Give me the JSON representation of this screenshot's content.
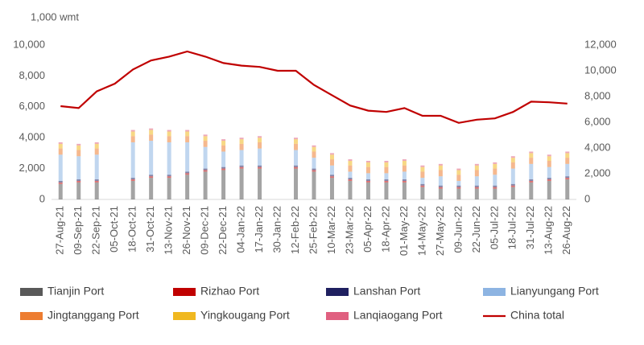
{
  "chart_data": {
    "type": "stacked_bar_line",
    "y_axis_title": "1,000 wmt",
    "categories": [
      "27-Aug-21",
      "09-Sep-21",
      "22-Sep-21",
      "05-Oct-21",
      "18-Oct-21",
      "31-Oct-21",
      "13-Nov-21",
      "26-Nov-21",
      "09-Dec-21",
      "22-Dec-21",
      "04-Jan-22",
      "17-Jan-22",
      "30-Jan-22",
      "12-Feb-22",
      "25-Feb-22",
      "10-Mar-22",
      "23-Mar-22",
      "05-Apr-22",
      "18-Apr-22",
      "01-May-22",
      "14-May-22",
      "27-May-22",
      "09-Jun-22",
      "22-Jun-22",
      "05-Jul-22",
      "18-Jul-22",
      "31-Jul-22",
      "13-Aug-22",
      "26-Aug-22"
    ],
    "series": [
      {
        "name": "Tianjin Port",
        "color": "#595959",
        "values": [
          1000,
          1100,
          1100,
          null,
          1200,
          1400,
          1400,
          1600,
          1800,
          1900,
          2000,
          2000,
          null,
          2000,
          1800,
          1400,
          1200,
          1100,
          1100,
          1100,
          800,
          700,
          700,
          700,
          700,
          800,
          1100,
          1200,
          1300
        ]
      },
      {
        "name": "Rizhao Port",
        "color": "#c00000",
        "values": [
          100,
          100,
          100,
          null,
          100,
          100,
          100,
          100,
          100,
          100,
          100,
          100,
          null,
          100,
          100,
          100,
          100,
          100,
          100,
          100,
          100,
          100,
          100,
          100,
          100,
          100,
          100,
          100,
          100
        ]
      },
      {
        "name": "Lanshan Port",
        "color": "#1f2060",
        "values": [
          100,
          100,
          100,
          null,
          100,
          100,
          100,
          100,
          100,
          100,
          100,
          100,
          null,
          100,
          100,
          100,
          100,
          100,
          100,
          100,
          100,
          100,
          100,
          100,
          100,
          100,
          100,
          100,
          100
        ]
      },
      {
        "name": "Lianyungang Port",
        "color": "#8db4e2",
        "values": [
          1700,
          1500,
          1600,
          null,
          2300,
          2200,
          2100,
          1900,
          1400,
          1000,
          1000,
          1100,
          null,
          1000,
          700,
          600,
          400,
          400,
          400,
          500,
          400,
          600,
          300,
          600,
          700,
          1000,
          1000,
          700,
          800
        ]
      },
      {
        "name": "Jingtanggang Port",
        "color": "#ed7d31",
        "values": [
          400,
          400,
          400,
          null,
          400,
          400,
          400,
          400,
          400,
          400,
          400,
          400,
          null,
          400,
          400,
          400,
          400,
          400,
          400,
          400,
          400,
          400,
          400,
          400,
          400,
          400,
          400,
          400,
          400
        ]
      },
      {
        "name": "Yingkougang Port",
        "color": "#f0b820",
        "values": [
          300,
          300,
          300,
          null,
          300,
          300,
          300,
          300,
          300,
          300,
          300,
          300,
          null,
          300,
          300,
          300,
          300,
          300,
          300,
          300,
          300,
          300,
          300,
          300,
          300,
          300,
          300,
          300,
          300
        ]
      },
      {
        "name": "Lanqiaogang Port",
        "color": "#e06080",
        "values": [
          100,
          100,
          100,
          null,
          100,
          100,
          100,
          100,
          100,
          100,
          100,
          100,
          null,
          100,
          100,
          100,
          100,
          100,
          100,
          100,
          100,
          100,
          100,
          100,
          100,
          100,
          100,
          100,
          100
        ]
      },
      {
        "name": "China total",
        "color": "#c00000",
        "axis": "y2",
        "values": [
          7250,
          7100,
          8400,
          9000,
          10100,
          10800,
          11100,
          11500,
          11100,
          10600,
          10400,
          10300,
          10000,
          10000,
          8900,
          8100,
          7300,
          6900,
          6800,
          7100,
          6500,
          6500,
          5950,
          6200,
          6300,
          6800,
          7600,
          7550,
          7450
        ]
      }
    ],
    "ylim": [
      0,
      10000
    ],
    "yticks": [
      0,
      {
        "value": 2000,
        "label": "2,000"
      },
      {
        "value": 4000,
        "label": "4,000"
      },
      {
        "value": 6000,
        "label": "6,000"
      },
      {
        "value": 8000,
        "label": "8,000"
      },
      {
        "value": 10000,
        "label": "10,000"
      }
    ],
    "y2lim": [
      0,
      12000
    ],
    "y2ticks": [
      0,
      {
        "value": 2000,
        "label": "2,000"
      },
      {
        "value": 4000,
        "label": "4,000"
      },
      {
        "value": 6000,
        "label": "6,000"
      },
      {
        "value": 8000,
        "label": "8,000"
      },
      {
        "value": 10000,
        "label": "10,000"
      },
      {
        "value": 12000,
        "label": "12,000"
      }
    ],
    "grid": false
  }
}
